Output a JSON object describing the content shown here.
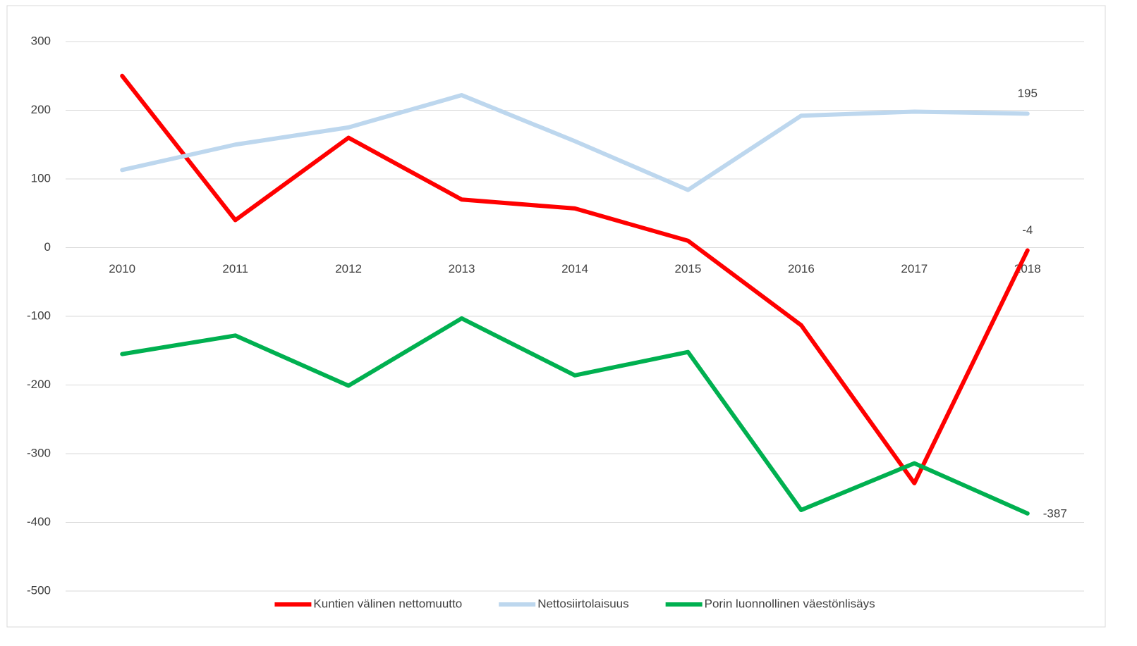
{
  "chart_data": {
    "type": "line",
    "categories": [
      "2010",
      "2011",
      "2012",
      "2013",
      "2014",
      "2015",
      "2016",
      "2017",
      "2018"
    ],
    "series": [
      {
        "name": "Kuntien välinen nettomuutto",
        "color": "#ff0000",
        "values": [
          250,
          40,
          160,
          70,
          57,
          10,
          -113,
          -343,
          -4
        ]
      },
      {
        "name": "Nettosiirtolaisuus",
        "color": "#bdd7ee",
        "values": [
          113,
          150,
          175,
          222,
          155,
          84,
          192,
          198,
          195
        ]
      },
      {
        "name": "Porin luonnollinen väestönlisäys",
        "color": "#00b050",
        "values": [
          -155,
          -128,
          -201,
          -103,
          -186,
          -152,
          -382,
          -314,
          -387
        ]
      }
    ],
    "ylim": [
      -500,
      300
    ],
    "yticks": [
      -500,
      -400,
      -300,
      -200,
      -100,
      0,
      100,
      200,
      300
    ],
    "grid": true,
    "data_labels": "last",
    "legend": "bottom"
  }
}
